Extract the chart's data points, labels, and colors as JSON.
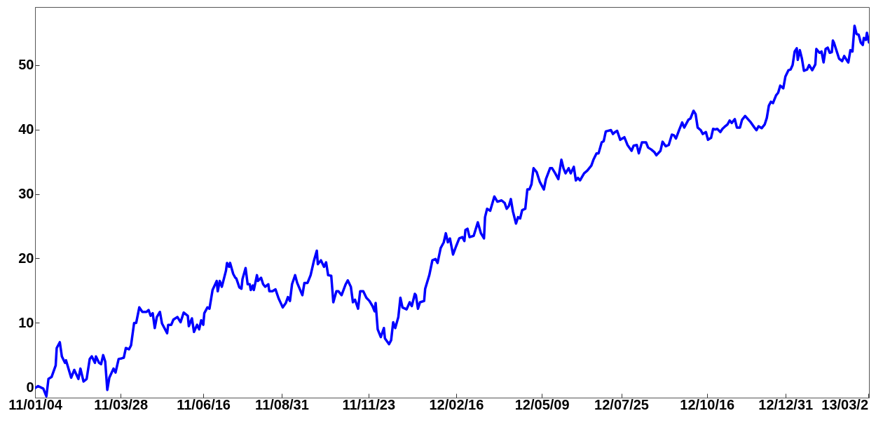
{
  "chart_data": {
    "type": "line",
    "x": [
      "2011-01-04",
      "2011-01-07",
      "2011-01-12",
      "2011-01-15",
      "2011-01-17",
      "2011-01-20",
      "2011-01-24",
      "2011-01-25",
      "2011-01-28",
      "2011-01-30",
      "2011-02-02",
      "2011-02-03",
      "2011-02-08",
      "2011-02-11",
      "2011-02-15",
      "2011-02-17",
      "2011-02-20",
      "2011-02-23",
      "2011-02-26",
      "2011-02-28",
      "2011-03-03",
      "2011-03-04",
      "2011-03-07",
      "2011-03-09",
      "2011-03-11",
      "2011-03-13",
      "2011-03-15",
      "2011-03-17",
      "2011-03-21",
      "2011-03-23",
      "2011-03-26",
      "2011-03-29",
      "2011-03-31",
      "2011-04-02",
      "2011-04-05",
      "2011-04-07",
      "2011-04-10",
      "2011-04-12",
      "2011-04-15",
      "2011-04-18",
      "2011-04-22",
      "2011-04-24",
      "2011-04-26",
      "2011-04-28",
      "2011-04-30",
      "2011-05-02",
      "2011-05-05",
      "2011-05-07",
      "2011-05-12",
      "2011-05-13",
      "2011-05-16",
      "2011-05-18",
      "2011-05-22",
      "2011-05-25",
      "2011-05-28",
      "2011-06-01",
      "2011-06-02",
      "2011-06-05",
      "2011-06-07",
      "2011-06-10",
      "2011-06-12",
      "2011-06-14",
      "2011-06-16",
      "2011-06-17",
      "2011-06-20",
      "2011-06-22",
      "2011-06-25",
      "2011-06-29",
      "2011-06-30",
      "2011-07-02",
      "2011-07-04",
      "2011-07-08",
      "2011-07-09",
      "2011-07-11",
      "2011-07-12",
      "2011-07-15",
      "2011-07-17",
      "2011-07-18",
      "2011-07-21",
      "2011-07-23",
      "2011-07-24",
      "2011-07-27",
      "2011-07-29",
      "2011-07-31",
      "2011-08-01",
      "2011-08-03",
      "2011-08-04",
      "2011-08-07",
      "2011-08-08",
      "2011-08-11",
      "2011-08-13",
      "2011-08-15",
      "2011-08-18",
      "2011-08-19",
      "2011-08-22",
      "2011-08-25",
      "2011-08-28",
      "2011-08-30",
      "2011-09-01",
      "2011-09-04",
      "2011-09-06",
      "2011-09-08",
      "2011-09-10",
      "2011-09-13",
      "2011-09-15",
      "2011-09-20",
      "2011-09-22",
      "2011-09-25",
      "2011-09-28",
      "2011-10-01",
      "2011-10-04",
      "2011-10-05",
      "2011-10-08",
      "2011-10-11",
      "2011-10-13",
      "2011-10-15",
      "2011-10-18",
      "2011-10-20",
      "2011-10-23",
      "2011-10-25",
      "2011-10-28",
      "2011-11-01",
      "2011-11-03",
      "2011-11-06",
      "2011-11-08",
      "2011-11-10",
      "2011-11-13",
      "2011-11-15",
      "2011-11-18",
      "2011-11-21",
      "2011-11-24",
      "2011-11-27",
      "2011-11-29",
      "2011-11-30",
      "2011-12-02",
      "2011-12-05",
      "2011-12-08",
      "2011-12-09",
      "2011-12-13",
      "2011-12-15",
      "2011-12-17",
      "2011-12-19",
      "2011-12-22",
      "2011-12-24",
      "2011-12-26",
      "2011-12-30",
      "2012-01-02",
      "2012-01-04",
      "2012-01-07",
      "2012-01-08",
      "2012-01-10",
      "2012-01-12",
      "2012-01-16",
      "2012-01-17",
      "2012-01-21",
      "2012-01-24",
      "2012-01-27",
      "2012-01-29",
      "2012-02-01",
      "2012-02-04",
      "2012-02-06",
      "2012-02-08",
      "2012-02-10",
      "2012-02-13",
      "2012-02-16",
      "2012-02-19",
      "2012-02-22",
      "2012-02-24",
      "2012-02-25",
      "2012-02-27",
      "2012-02-29",
      "2012-03-04",
      "2012-03-08",
      "2012-03-11",
      "2012-03-14",
      "2012-03-15",
      "2012-03-17",
      "2012-03-20",
      "2012-03-24",
      "2012-03-27",
      "2012-03-31",
      "2012-04-03",
      "2012-04-05",
      "2012-04-07",
      "2012-04-09",
      "2012-04-11",
      "2012-04-14",
      "2012-04-16",
      "2012-04-18",
      "2012-04-20",
      "2012-04-23",
      "2012-04-25",
      "2012-04-27",
      "2012-04-29",
      "2012-05-01",
      "2012-05-04",
      "2012-05-07",
      "2012-05-11",
      "2012-05-13",
      "2012-05-17",
      "2012-05-19",
      "2012-05-22",
      "2012-05-25",
      "2012-05-28",
      "2012-05-30",
      "2012-06-01",
      "2012-06-04",
      "2012-06-06",
      "2012-06-09",
      "2012-06-11",
      "2012-06-13",
      "2012-06-15",
      "2012-06-19",
      "2012-06-22",
      "2012-06-26",
      "2012-06-28",
      "2012-07-01",
      "2012-07-03",
      "2012-07-06",
      "2012-07-08",
      "2012-07-10",
      "2012-07-15",
      "2012-07-17",
      "2012-07-19",
      "2012-07-21",
      "2012-07-24",
      "2012-07-28",
      "2012-07-31",
      "2012-08-04",
      "2012-08-06",
      "2012-08-09",
      "2012-08-11",
      "2012-08-14",
      "2012-08-18",
      "2012-08-20",
      "2012-08-23",
      "2012-08-26",
      "2012-08-28",
      "2012-09-01",
      "2012-09-03",
      "2012-09-06",
      "2012-09-09",
      "2012-09-12",
      "2012-09-14",
      "2012-09-16",
      "2012-09-19",
      "2012-09-22",
      "2012-09-24",
      "2012-09-28",
      "2012-09-30",
      "2012-10-03",
      "2012-10-05",
      "2012-10-07",
      "2012-10-10",
      "2012-10-12",
      "2012-10-15",
      "2012-10-17",
      "2012-10-20",
      "2012-10-22",
      "2012-10-24",
      "2012-10-26",
      "2012-10-29",
      "2012-10-31",
      "2012-11-02",
      "2012-11-05",
      "2012-11-07",
      "2012-11-09",
      "2012-11-12",
      "2012-11-14",
      "2012-11-17",
      "2012-11-19",
      "2012-11-22",
      "2012-11-27",
      "2012-12-01",
      "2012-12-03",
      "2012-12-05",
      "2012-12-08",
      "2012-12-11",
      "2012-12-13",
      "2012-12-15",
      "2012-12-17",
      "2012-12-19",
      "2012-12-22",
      "2012-12-24",
      "2012-12-26",
      "2012-12-29",
      "2012-12-31",
      "2013-01-03",
      "2013-01-05",
      "2013-01-07",
      "2013-01-09",
      "2013-01-11",
      "2013-01-12",
      "2013-01-14",
      "2013-01-16",
      "2013-01-18",
      "2013-01-21",
      "2013-01-23",
      "2013-01-26",
      "2013-01-29",
      "2013-01-30",
      "2013-02-02",
      "2013-02-04",
      "2013-02-06",
      "2013-02-08",
      "2013-02-10",
      "2013-02-12",
      "2013-02-14",
      "2013-02-15",
      "2013-02-16",
      "2013-02-18",
      "2013-02-21",
      "2013-02-24",
      "2013-02-26",
      "2013-03-01",
      "2013-03-02",
      "2013-03-04",
      "2013-03-06",
      "2013-03-08",
      "2013-03-10",
      "2013-03-12",
      "2013-03-14",
      "2013-03-16",
      "2013-03-17",
      "2013-03-19",
      "2013-03-20",
      "2013-03-22"
    ],
    "series": [
      {
        "color": "#0000ff",
        "values": [
          -0.1,
          0.2,
          -0.2,
          -1.4,
          1.3,
          1.6,
          3.4,
          6.1,
          7.0,
          4.8,
          3.8,
          4.2,
          1.5,
          2.7,
          1.3,
          2.9,
          0.9,
          1.3,
          4.4,
          4.8,
          3.8,
          4.8,
          3.8,
          3.6,
          5.0,
          4.0,
          -0.4,
          1.5,
          2.9,
          2.3,
          4.4,
          4.5,
          4.6,
          6.1,
          5.9,
          6.5,
          10.0,
          10.0,
          12.4,
          11.7,
          11.7,
          12.0,
          11.1,
          11.5,
          9.2,
          10.9,
          11.7,
          9.9,
          8.4,
          9.7,
          9.7,
          10.5,
          10.9,
          10.1,
          11.6,
          11.1,
          9.5,
          10.7,
          8.6,
          9.7,
          9.0,
          10.4,
          9.7,
          11.5,
          12.4,
          12.2,
          15.1,
          16.5,
          14.9,
          16.5,
          15.6,
          18.1,
          19.3,
          18.7,
          19.3,
          17.6,
          17.0,
          16.9,
          15.5,
          15.3,
          16.8,
          18.5,
          16.0,
          16.0,
          15.1,
          15.8,
          15.1,
          17.4,
          16.5,
          17.0,
          16.0,
          15.6,
          16.0,
          14.9,
          14.9,
          15.2,
          13.8,
          13.1,
          12.4,
          13.1,
          14.0,
          13.4,
          16.0,
          17.4,
          16.2,
          14.3,
          16.2,
          16.2,
          17.4,
          19.5,
          21.2,
          19.1,
          19.7,
          18.7,
          19.4,
          17.4,
          17.3,
          13.2,
          14.9,
          14.9,
          14.3,
          16.0,
          16.6,
          15.6,
          13.2,
          13.6,
          12.2,
          14.9,
          14.9,
          13.9,
          13.4,
          12.6,
          11.8,
          13.1,
          9.0,
          7.8,
          9.2,
          7.6,
          6.7,
          7.3,
          10.1,
          9.2,
          10.9,
          13.9,
          12.4,
          12.1,
          13.2,
          12.6,
          14.5,
          14.3,
          12.2,
          13.2,
          13.4,
          15.3,
          17.4,
          19.7,
          19.9,
          19.3,
          21.6,
          22.5,
          23.9,
          22.5,
          23.1,
          20.6,
          21.9,
          23.1,
          23.3,
          22.7,
          24.4,
          24.6,
          23.3,
          23.5,
          25.6,
          23.9,
          23.1,
          26.4,
          27.7,
          27.4,
          29.6,
          28.8,
          29.0,
          28.6,
          27.7,
          28.1,
          29.2,
          27.3,
          25.4,
          26.4,
          26.2,
          27.5,
          27.7,
          30.7,
          30.7,
          31.5,
          34.0,
          33.4,
          31.9,
          30.7,
          32.3,
          34.0,
          34.0,
          33.2,
          32.3,
          35.3,
          34.0,
          33.2,
          34.0,
          33.2,
          34.2,
          32.1,
          32.5,
          32.1,
          33.2,
          33.6,
          34.4,
          35.3,
          36.3,
          36.3,
          38.0,
          38.2,
          39.7,
          39.9,
          39.3,
          39.6,
          39.8,
          38.4,
          38.8,
          37.6,
          36.7,
          37.5,
          37.6,
          36.3,
          38.0,
          38.0,
          37.2,
          36.9,
          36.5,
          36.0,
          36.7,
          38.1,
          37.4,
          37.6,
          39.2,
          39.1,
          38.6,
          39.9,
          41.1,
          40.3,
          41.5,
          41.7,
          42.9,
          42.4,
          40.3,
          39.9,
          39.3,
          39.6,
          38.4,
          38.7,
          40.1,
          40.0,
          40.1,
          39.6,
          40.1,
          40.4,
          40.8,
          41.4,
          41.0,
          41.6,
          40.3,
          40.3,
          41.5,
          42.1,
          41.2,
          40.3,
          39.9,
          40.5,
          40.2,
          40.8,
          41.8,
          43.7,
          44.3,
          44.1,
          45.3,
          45.7,
          46.8,
          46.4,
          48.2,
          49.2,
          49.3,
          50.0,
          52.1,
          52.6,
          50.8,
          52.3,
          51.0,
          49.1,
          49.3,
          50.0,
          49.2,
          50.1,
          52.5,
          51.9,
          52.1,
          50.4,
          52.5,
          52.7,
          51.9,
          52.0,
          53.8,
          53.5,
          52.5,
          51.0,
          50.6,
          51.4,
          50.6,
          50.4,
          52.3,
          52.1,
          56.1,
          54.8,
          54.7,
          53.5,
          53.1,
          54.2,
          53.9,
          55.0,
          53.5
        ]
      }
    ],
    "xlim": [
      "2011-01-04",
      "2013-03-22"
    ],
    "xticks": [
      {
        "value": "2011-01-04",
        "label": "11/01/04"
      },
      {
        "value": "2011-03-28",
        "label": "11/03/28"
      },
      {
        "value": "2011-06-16",
        "label": "11/06/16"
      },
      {
        "value": "2011-08-31",
        "label": "11/08/31"
      },
      {
        "value": "2011-11-23",
        "label": "11/11/23"
      },
      {
        "value": "2012-02-16",
        "label": "12/02/16"
      },
      {
        "value": "2012-05-09",
        "label": "12/05/09"
      },
      {
        "value": "2012-07-25",
        "label": "12/07/25"
      },
      {
        "value": "2012-10-16",
        "label": "12/10/16"
      },
      {
        "value": "2012-12-31",
        "label": "12/12/31"
      },
      {
        "value": "2013-03-21",
        "label": "13/03/2"
      }
    ],
    "ylim": [
      -1.6,
      59
    ],
    "yticks": [
      0,
      10,
      20,
      30,
      40,
      50
    ],
    "line_style": "solid"
  }
}
